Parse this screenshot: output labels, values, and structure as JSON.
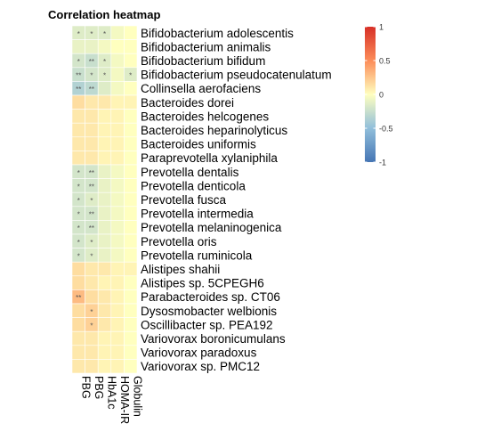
{
  "chart_data": {
    "type": "heatmap",
    "title": "Correlation heatmap",
    "columns": [
      "FBG",
      "PBG",
      "HbA1c",
      "HOMA-IR",
      "Globulin"
    ],
    "rows": [
      "Bifidobacterium adolescentis",
      "Bifidobacterium animalis",
      "Bifidobacterium bifidum",
      "Bifidobacterium pseudocatenulatum",
      "Collinsella aerofaciens",
      "Bacteroides dorei",
      "Bacteroides helcogenes",
      "Bacteroides heparinolyticus",
      "Bacteroides uniformis",
      "Paraprevotella xylaniphila",
      "Prevotella dentalis",
      "Prevotella denticola",
      "Prevotella fusca",
      "Prevotella intermedia",
      "Prevotella melaninogenica",
      "Prevotella oris",
      "Prevotella ruminicola",
      "Alistipes shahii",
      "Alistipes sp. 5CPEGH6",
      "Parabacteroides sp. CT06",
      "Dysosmobacter welbionis",
      "Oscillibacter sp. PEA192",
      "Variovorax boronicumulans",
      "Variovorax paradoxus",
      "Variovorax sp. PMC12"
    ],
    "values": [
      [
        -0.15,
        -0.15,
        -0.15,
        -0.05,
        0.0
      ],
      [
        -0.1,
        -0.1,
        -0.05,
        0.0,
        0.0
      ],
      [
        -0.2,
        -0.25,
        -0.15,
        -0.05,
        0.0
      ],
      [
        -0.25,
        -0.2,
        -0.15,
        -0.05,
        -0.15
      ],
      [
        -0.35,
        -0.3,
        -0.15,
        -0.05,
        0.0
      ],
      [
        0.15,
        0.1,
        0.1,
        0.05,
        0.05
      ],
      [
        0.1,
        0.1,
        0.05,
        0.05,
        0.0
      ],
      [
        0.1,
        0.1,
        0.05,
        0.05,
        0.0
      ],
      [
        0.1,
        0.1,
        0.05,
        0.05,
        0.0
      ],
      [
        0.1,
        0.1,
        0.05,
        0.05,
        0.0
      ],
      [
        -0.2,
        -0.2,
        -0.1,
        -0.05,
        0.0
      ],
      [
        -0.2,
        -0.2,
        -0.1,
        -0.05,
        0.0
      ],
      [
        -0.2,
        -0.15,
        -0.1,
        -0.05,
        0.0
      ],
      [
        -0.2,
        -0.2,
        -0.1,
        -0.05,
        0.0
      ],
      [
        -0.2,
        -0.2,
        -0.1,
        -0.05,
        0.0
      ],
      [
        -0.2,
        -0.15,
        -0.1,
        -0.05,
        0.0
      ],
      [
        -0.2,
        -0.15,
        -0.1,
        -0.05,
        0.0
      ],
      [
        0.15,
        0.1,
        0.1,
        0.05,
        0.05
      ],
      [
        0.15,
        0.1,
        0.05,
        0.05,
        0.0
      ],
      [
        0.3,
        0.15,
        0.1,
        0.05,
        0.0
      ],
      [
        0.15,
        0.2,
        0.1,
        0.05,
        0.0
      ],
      [
        0.15,
        0.2,
        0.1,
        0.05,
        0.0
      ],
      [
        0.1,
        0.1,
        0.05,
        0.05,
        0.0
      ],
      [
        0.1,
        0.1,
        0.05,
        0.05,
        0.0
      ],
      [
        0.1,
        0.1,
        0.05,
        0.05,
        0.0
      ]
    ],
    "significance": [
      [
        "*",
        "*",
        "*",
        "",
        ""
      ],
      [
        "",
        "",
        "",
        "",
        ""
      ],
      [
        "*",
        "**",
        "*",
        "",
        ""
      ],
      [
        "**",
        "*",
        "*",
        "",
        "*"
      ],
      [
        "**",
        "**",
        "",
        "",
        ""
      ],
      [
        "",
        "",
        "",
        "",
        ""
      ],
      [
        "",
        "",
        "",
        "",
        ""
      ],
      [
        "",
        "",
        "",
        "",
        ""
      ],
      [
        "",
        "",
        "",
        "",
        ""
      ],
      [
        "",
        "",
        "",
        "",
        ""
      ],
      [
        "*",
        "**",
        "",
        "",
        ""
      ],
      [
        "*",
        "**",
        "",
        "",
        ""
      ],
      [
        "*",
        "*",
        "",
        "",
        ""
      ],
      [
        "*",
        "**",
        "",
        "",
        ""
      ],
      [
        "*",
        "**",
        "",
        "",
        ""
      ],
      [
        "*",
        "*",
        "",
        "",
        ""
      ],
      [
        "*",
        "*",
        "",
        "",
        ""
      ],
      [
        "",
        "",
        "",
        "",
        ""
      ],
      [
        "",
        "",
        "",
        "",
        ""
      ],
      [
        "**",
        "",
        "",
        "",
        ""
      ],
      [
        "",
        "*",
        "",
        "",
        ""
      ],
      [
        "",
        "*",
        "",
        "",
        ""
      ],
      [
        "",
        "",
        "",
        "",
        ""
      ],
      [
        "",
        "",
        "",
        "",
        ""
      ],
      [
        "",
        "",
        "",
        "",
        ""
      ]
    ],
    "colorscale": {
      "range": [
        -1,
        1
      ],
      "ticks": [
        1,
        0.5,
        0,
        -0.5,
        -1
      ],
      "tick_labels": [
        "1",
        "0.5",
        "0",
        "-0.5",
        "-1"
      ],
      "colors": [
        "#4575b4",
        "#91bfdb",
        "#ffffbf",
        "#fc8d59",
        "#d73027"
      ]
    },
    "legend_position": "right",
    "grid": false
  }
}
